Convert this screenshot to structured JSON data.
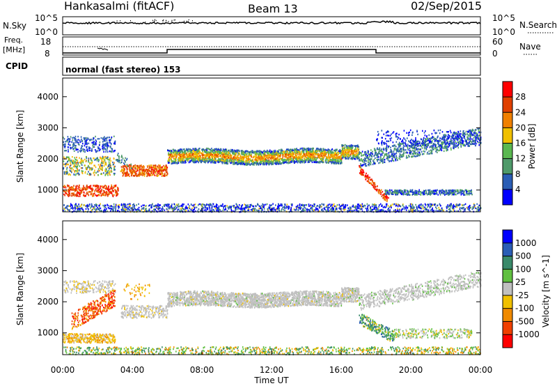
{
  "header": {
    "title": "Hankasalmi (fitACF)",
    "beam": "Beam 13",
    "date": "02/Sep/2015"
  },
  "top_panels": {
    "nsky": {
      "label": "N.Sky",
      "ticks": [
        "10^5",
        "10^0"
      ],
      "right_label": "N.Search",
      "right_ticks": [
        "10^5",
        "10^0"
      ]
    },
    "freq": {
      "label_line1": "Freq.",
      "label_line2": "[MHz]",
      "ticks": [
        "18",
        "8"
      ],
      "right_label": "Nave",
      "right_ticks": [
        "60",
        "0"
      ]
    },
    "cpid": {
      "label": "CPID",
      "text": "normal (fast stereo) 153"
    }
  },
  "colors": {
    "power": [
      "#0000ff",
      "#2a5db5",
      "#4f9a6a",
      "#5ab850",
      "#f0c000",
      "#f08000",
      "#e04000",
      "#ff0000"
    ],
    "velocity": [
      "#ff0000",
      "#f04000",
      "#f08a00",
      "#f0c000",
      "#c0c0c0",
      "#60c040",
      "#3a8a6a",
      "#2a5db5",
      "#0000ff"
    ]
  },
  "chart_data": [
    {
      "type": "heatmap",
      "name": "power",
      "ylabel": "Slant Range [km]",
      "xlabel": "",
      "x_ticks": [
        "00:00",
        "04:00",
        "08:00",
        "12:00",
        "16:00",
        "20:00",
        "00:00"
      ],
      "y_ticks": [
        1000,
        2000,
        3000,
        4000
      ],
      "ylim": [
        300,
        4600
      ],
      "xlim_hours": [
        0,
        24
      ],
      "colorbar": {
        "label": "Power [dB]",
        "ticks": [
          "4",
          "8",
          "12",
          "16",
          "20",
          "24",
          "28"
        ]
      }
    },
    {
      "type": "heatmap",
      "name": "velocity",
      "ylabel": "Slant Range [km]",
      "xlabel": "Time UT",
      "x_ticks": [
        "00:00",
        "04:00",
        "08:00",
        "12:00",
        "16:00",
        "20:00",
        "00:00"
      ],
      "y_ticks": [
        1000,
        2000,
        3000,
        4000
      ],
      "ylim": [
        300,
        4600
      ],
      "xlim_hours": [
        0,
        24
      ],
      "colorbar": {
        "label": "Velocity [m s^-1]",
        "ticks": [
          "1000",
          "500",
          "100",
          "25",
          "-25",
          "-100",
          "-500",
          "-1000"
        ]
      }
    }
  ]
}
